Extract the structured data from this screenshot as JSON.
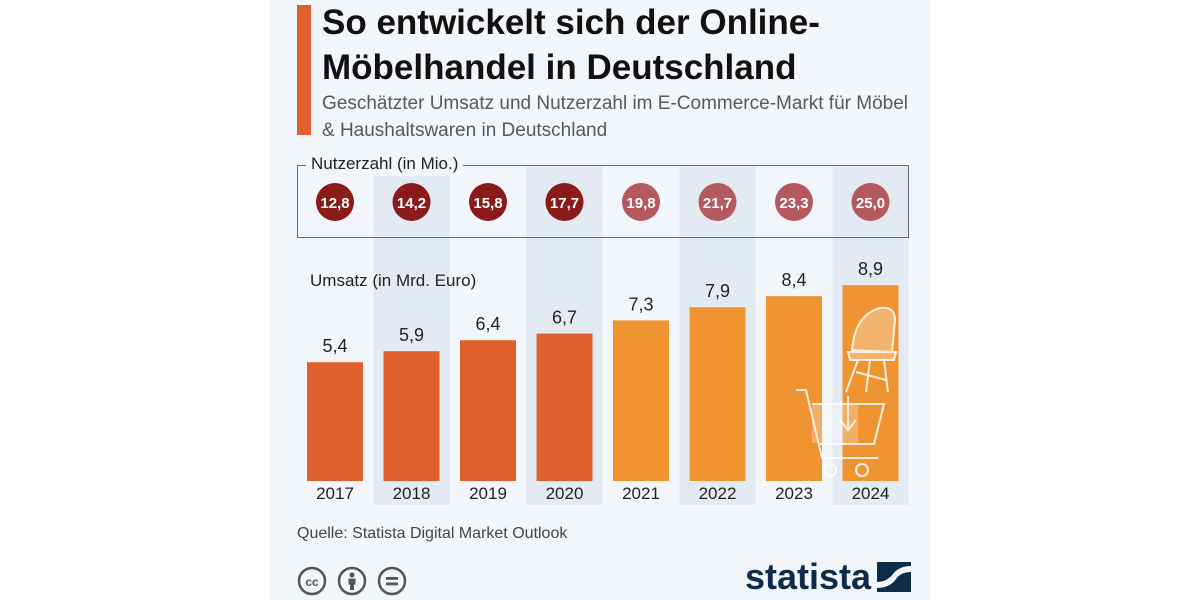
{
  "title": "So entwickelt sich der Online-Möbelhandel in Deutschland",
  "subtitle": "Geschätzter Umsatz und Nutzerzahl im E-Commerce-Markt für Möbel & Haushaltswaren in Deutschland",
  "source": "Quelle: Statista Digital Market Outlook",
  "brand": "statista",
  "colors": {
    "accent": "#e0602d",
    "bar_dark": "#e0602d",
    "bar_light": "#ef9431",
    "circle_dark": "#8b1a1a",
    "circle_light": "#b45a5f",
    "column_stripe": "#e4eaf2"
  },
  "icons": [
    "cc-icon",
    "by-icon",
    "nd-icon",
    "statista-logo-icon",
    "chair-icon",
    "shopping-cart-icon"
  ],
  "chart_data": {
    "type": "bar",
    "categories": [
      "2017",
      "2018",
      "2019",
      "2020",
      "2021",
      "2022",
      "2023",
      "2024"
    ],
    "series": [
      {
        "name": "Umsatz (in Mrd. Euro)",
        "values": [
          5.4,
          5.9,
          6.4,
          6.7,
          7.3,
          7.9,
          8.4,
          8.9
        ],
        "labels": [
          "5,4",
          "5,9",
          "6,4",
          "6,7",
          "7,3",
          "7,9",
          "8,4",
          "8,9"
        ],
        "color_by_index": [
          "#e0602d",
          "#e0602d",
          "#e0602d",
          "#e0602d",
          "#ef9431",
          "#ef9431",
          "#ef9431",
          "#ef9431"
        ]
      },
      {
        "name": "Nutzerzahl (in Mio.)",
        "values": [
          12.8,
          14.2,
          15.8,
          17.7,
          19.8,
          21.7,
          23.3,
          25.0
        ],
        "labels": [
          "12,8",
          "14,2",
          "15,8",
          "17,7",
          "19,8",
          "21,7",
          "23,3",
          "25,0"
        ],
        "color_by_index": [
          "#8b1a1a",
          "#8b1a1a",
          "#8b1a1a",
          "#8b1a1a",
          "#b45a5f",
          "#b45a5f",
          "#b45a5f",
          "#b45a5f"
        ]
      }
    ],
    "ylim": [
      0,
      10
    ],
    "grid": false,
    "legend": "none"
  }
}
